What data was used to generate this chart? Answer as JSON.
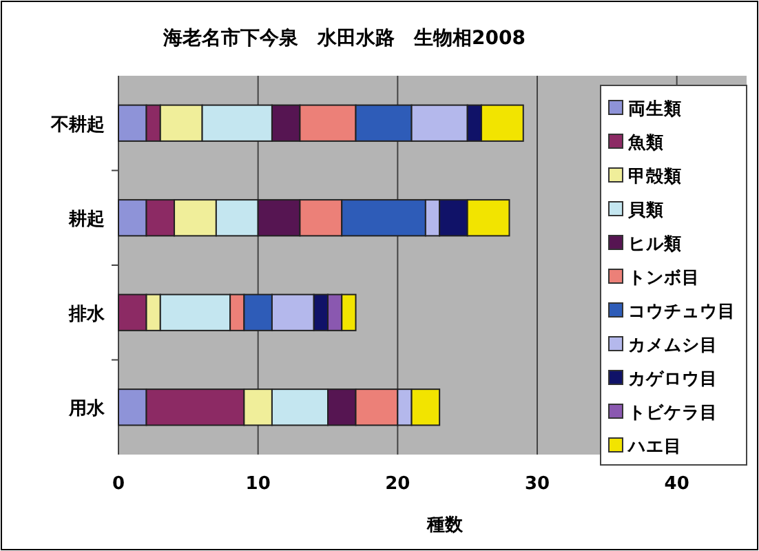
{
  "chart_data": {
    "type": "bar",
    "orientation": "horizontal",
    "stacked": true,
    "title": "海老名市下今泉　水田水路　生物相2008",
    "xlabel": "種数",
    "categories": [
      "不耕起",
      "耕起",
      "排水",
      "用水"
    ],
    "xlim": [
      0,
      45
    ],
    "xticks": [
      0,
      10,
      20,
      30,
      40
    ],
    "grid": "x",
    "legend": "right",
    "series": [
      {
        "name": "両生類",
        "color": "#8e93d8",
        "values": [
          2,
          2,
          0,
          2
        ]
      },
      {
        "name": "魚類",
        "color": "#8c2a64",
        "values": [
          1,
          2,
          2,
          7
        ]
      },
      {
        "name": "甲殻類",
        "color": "#f0ee9a",
        "values": [
          3,
          3,
          1,
          2
        ]
      },
      {
        "name": "貝類",
        "color": "#c4e6f0",
        "values": [
          5,
          3,
          5,
          4
        ]
      },
      {
        "name": "ヒル類",
        "color": "#561552",
        "values": [
          2,
          3,
          0,
          2
        ]
      },
      {
        "name": "トンボ目",
        "color": "#ec8078",
        "values": [
          4,
          3,
          1,
          3
        ]
      },
      {
        "name": "コウチュウ目",
        "color": "#2e5cb8",
        "values": [
          4,
          6,
          2,
          0
        ]
      },
      {
        "name": "カメムシ目",
        "color": "#b4b8ec",
        "values": [
          4,
          1,
          3,
          1
        ]
      },
      {
        "name": "カゲロウ目",
        "color": "#101268",
        "values": [
          1,
          2,
          1,
          0
        ]
      },
      {
        "name": "トビケラ目",
        "color": "#8a58b0",
        "values": [
          0,
          0,
          1,
          0
        ]
      },
      {
        "name": "ハエ目",
        "color": "#f2e400",
        "values": [
          3,
          3,
          1,
          2
        ]
      }
    ]
  }
}
